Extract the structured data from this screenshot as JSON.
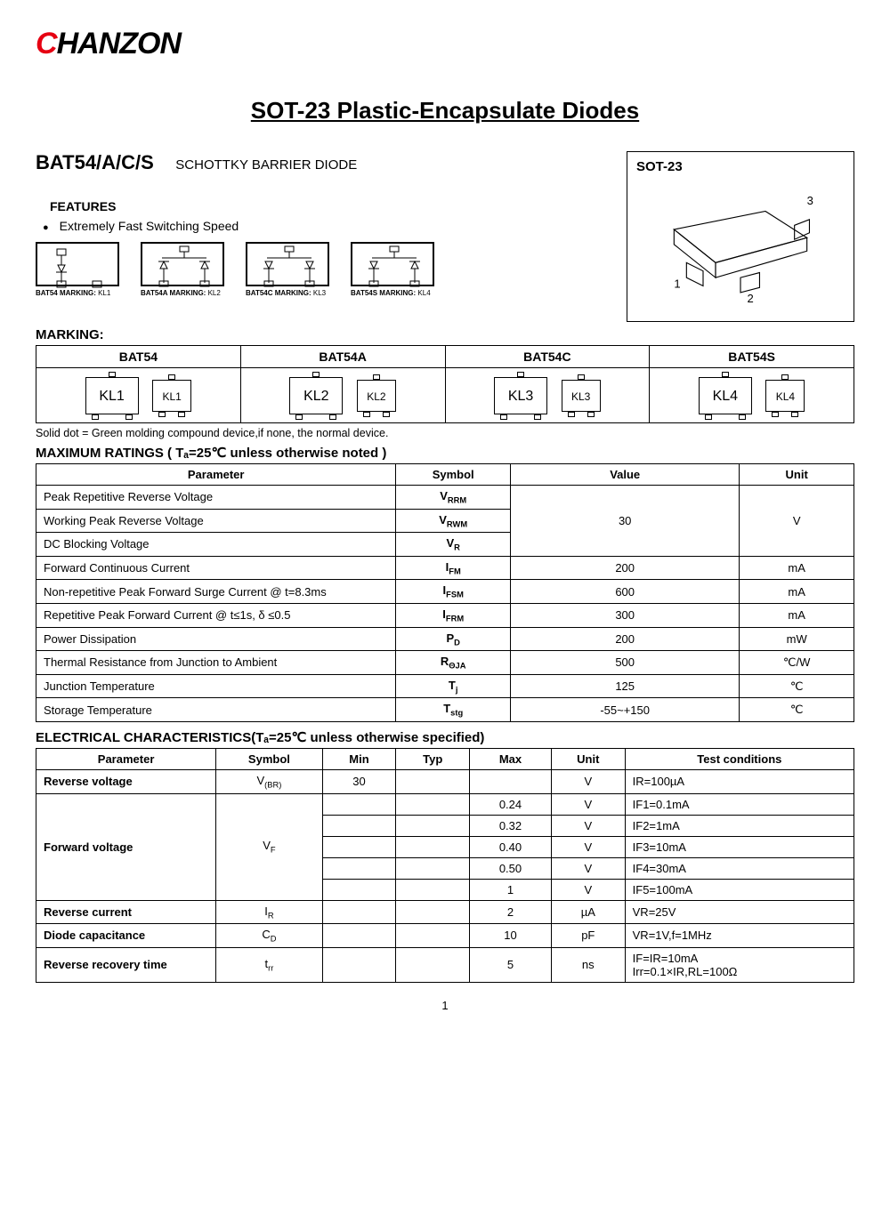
{
  "logo": {
    "first": "C",
    "rest": "HANZON"
  },
  "page_title": "SOT-23 Plastic-Encapsulate Diodes",
  "part": {
    "number": "BAT54/A/C/S",
    "subtitle": "SCHOTTKY BARRIER DIODE"
  },
  "features": {
    "heading": "FEATURES",
    "items": [
      "Extremely Fast Switching Speed"
    ]
  },
  "schematics": [
    {
      "label_bold": "BAT54 MARKING: ",
      "label_kl": "KL1"
    },
    {
      "label_bold": "BAT54A MARKING: ",
      "label_kl": "KL2"
    },
    {
      "label_bold": "BAT54C MARKING: ",
      "label_kl": "KL3"
    },
    {
      "label_bold": "BAT54S MARKING: ",
      "label_kl": "KL4"
    }
  ],
  "sot": {
    "title": "SOT-23",
    "pin1": "1",
    "pin2": "2",
    "pin3": "3"
  },
  "marking": {
    "heading": "MARKING:",
    "headers": [
      "BAT54",
      "BAT54A",
      "BAT54C",
      "BAT54S"
    ],
    "codes": [
      "KL1",
      "KL2",
      "KL3",
      "KL4"
    ]
  },
  "dot_note": "Solid dot =  Green  molding  compound  device,if  none, the  normal  device.",
  "max_ratings": {
    "heading": "MAXIMUM RATINGS ( Tₐ=25℃ unless otherwise noted )",
    "cols": [
      "Parameter",
      "Symbol",
      "Value",
      "Unit"
    ],
    "group1": {
      "rows": [
        {
          "param": "Peak Repetitive Reverse Voltage",
          "sym": "V",
          "sub": "RRM"
        },
        {
          "param": "Working Peak Reverse Voltage",
          "sym": "V",
          "sub": "RWM"
        },
        {
          "param": "DC Blocking Voltage",
          "sym": "V",
          "sub": "R"
        }
      ],
      "value": "30",
      "unit": "V"
    },
    "rows": [
      {
        "param": "Forward Continuous Current",
        "sym": "I",
        "sub": "FM",
        "value": "200",
        "unit": "mA"
      },
      {
        "param": "Non-repetitive Peak Forward Surge Current @ t=8.3ms",
        "sym": "I",
        "sub": "FSM",
        "value": "600",
        "unit": "mA"
      },
      {
        "param": "Repetitive Peak Forward Current @ t≤1s, δ ≤0.5",
        "sym": "I",
        "sub": "FRM",
        "value": "300",
        "unit": "mA"
      },
      {
        "param": "Power Dissipation",
        "sym": "P",
        "sub": "D",
        "value": "200",
        "unit": "mW"
      },
      {
        "param": "Thermal Resistance from Junction to Ambient",
        "sym": "R",
        "sub": "ΘJA",
        "value": "500",
        "unit": "℃/W"
      },
      {
        "param": "Junction Temperature",
        "sym": "T",
        "sub": "j",
        "value": "125",
        "unit": "℃"
      },
      {
        "param": "Storage Temperature",
        "sym": "T",
        "sub": "stg",
        "value": "-55~+150",
        "unit": "℃"
      }
    ]
  },
  "elec": {
    "heading": "ELECTRICAL CHARACTERISTICS(Tₐ=25℃ unless otherwise specified)",
    "cols": [
      "Parameter",
      "Symbol",
      "Min",
      "Typ",
      "Max",
      "Unit",
      "Test conditions"
    ],
    "rows": [
      {
        "param": "Reverse voltage",
        "sym": "V",
        "sub": "(BR)",
        "min": "30",
        "typ": "",
        "max": "",
        "unit": "V",
        "cond": "IR=100µA",
        "rowspan": 1
      },
      {
        "param": "Forward voltage",
        "sym": "V",
        "sub": "F",
        "rowspan": 5,
        "subrows": [
          {
            "min": "",
            "typ": "",
            "max": "0.24",
            "unit": "V",
            "cond": "IF1=0.1mA"
          },
          {
            "min": "",
            "typ": "",
            "max": "0.32",
            "unit": "V",
            "cond": "IF2=1mA"
          },
          {
            "min": "",
            "typ": "",
            "max": "0.40",
            "unit": "V",
            "cond": "IF3=10mA"
          },
          {
            "min": "",
            "typ": "",
            "max": "0.50",
            "unit": "V",
            "cond": "IF4=30mA"
          },
          {
            "min": "",
            "typ": "",
            "max": "1",
            "unit": "V",
            "cond": "IF5=100mA"
          }
        ]
      },
      {
        "param": "Reverse current",
        "sym": "I",
        "sub": "R",
        "min": "",
        "typ": "",
        "max": "2",
        "unit": "µA",
        "cond": "VR=25V",
        "rowspan": 1
      },
      {
        "param": "Diode capacitance",
        "sym": "C",
        "sub": "D",
        "min": "",
        "typ": "",
        "max": "10",
        "unit": "pF",
        "cond": "VR=1V,f=1MHz",
        "rowspan": 1
      },
      {
        "param": "Reverse recovery time",
        "sym": "t",
        "sub": "rr",
        "min": "",
        "typ": "",
        "max": "5",
        "unit": "ns",
        "cond": "IF=IR=10mA\nIrr=0.1×IR,RL=100Ω",
        "rowspan": 1
      }
    ]
  },
  "page_number": "1",
  "colors": {
    "red": "#e60012",
    "black": "#000000",
    "border": "#000000"
  }
}
